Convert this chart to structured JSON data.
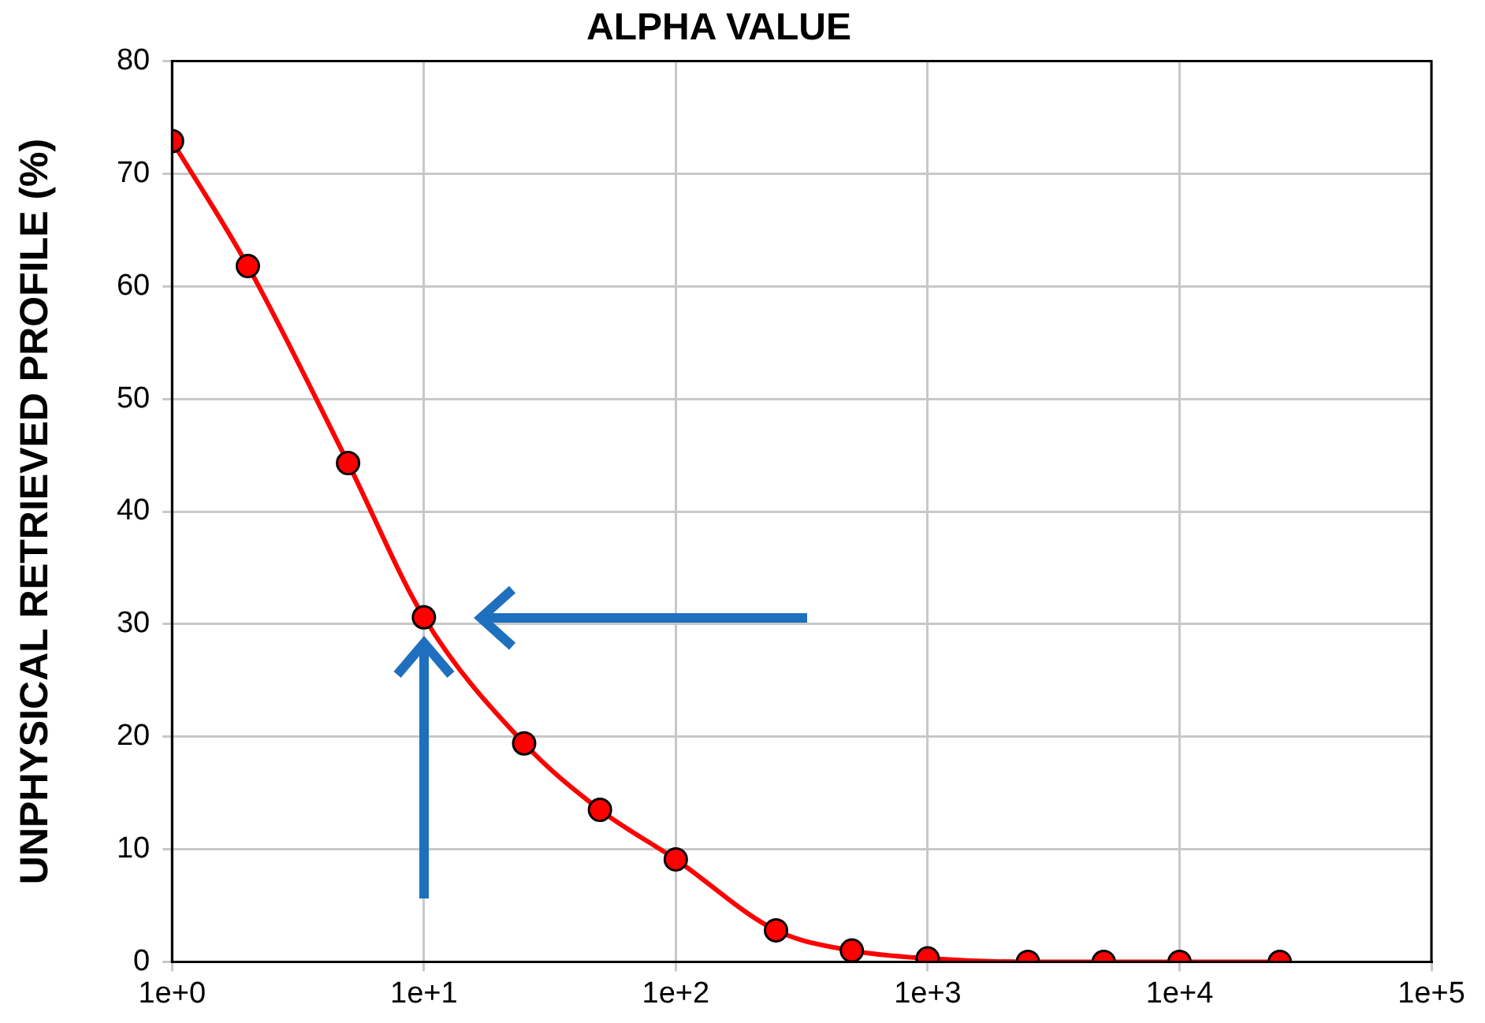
{
  "chart_data": {
    "type": "line",
    "title": "ALPHA VALUE",
    "ylabel": "UNPHYSICAL RETRIEVED PROFILE (%)",
    "x": [
      1,
      2,
      5,
      10,
      25,
      50,
      100,
      250,
      500,
      1000,
      2500,
      5000,
      10000,
      25000
    ],
    "series": [
      {
        "color": "#ff0000",
        "values": [
          72.9,
          61.8,
          44.3,
          30.6,
          19.4,
          13.5,
          9.1,
          2.8,
          1.0,
          0.3,
          0.0,
          0.0,
          0.0,
          0.0
        ]
      }
    ],
    "log": "x",
    "xlim": [
      1,
      100000
    ],
    "xticks": [
      {
        "value": 1,
        "label": "1e+0"
      },
      {
        "value": 10,
        "label": "1e+1"
      },
      {
        "value": 100,
        "label": "1e+2"
      },
      {
        "value": 1000,
        "label": "1e+3"
      },
      {
        "value": 10000,
        "label": "1e+4"
      },
      {
        "value": 100000,
        "label": "1e+5"
      }
    ],
    "ylim": [
      0,
      80
    ],
    "yticks": [
      0,
      10,
      20,
      30,
      40,
      50,
      60,
      70,
      80
    ],
    "grid": true,
    "legend": false,
    "marker": "circle",
    "line_style": "solid"
  }
}
